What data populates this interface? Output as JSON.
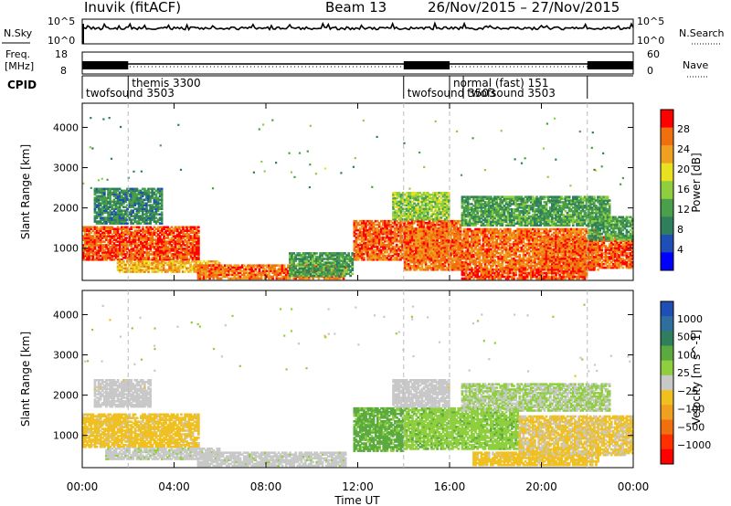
{
  "header": {
    "radar": "Inuvik (fitACF)",
    "beam": "Beam 13",
    "date_range": "26/Nov/2015 – 27/Nov/2015"
  },
  "nsky_panel": {
    "label": "N.Sky",
    "ytick_top": "10^5",
    "ytick_bottom": "10^0",
    "right_ytick_top": "10^5",
    "right_ytick_bottom": "10^0",
    "right_label": "N.Search"
  },
  "freq_panel": {
    "label_line1": "Freq.",
    "label_line2": "[MHz]",
    "ytick_top": "18",
    "ytick_bottom": "8",
    "right_ytick_top": "60",
    "right_ytick_bottom": "0",
    "right_label": "Nave"
  },
  "cpid_panel": {
    "label": "CPID",
    "segments": [
      {
        "start_hour": 0.0,
        "end_hour": 2.0,
        "row": 2,
        "text": "twofsound 3503"
      },
      {
        "start_hour": 2.0,
        "end_hour": 14.0,
        "row": 1,
        "text": "themis 3300"
      },
      {
        "start_hour": 14.0,
        "end_hour": 16.0,
        "row": 2,
        "text": "twofsound 3503"
      },
      {
        "start_hour": 16.0,
        "end_hour": 22.0,
        "row": 1,
        "text": "normal (fast) 151"
      },
      {
        "start_hour": 16.6,
        "end_hour": 22.0,
        "row": 2,
        "text": "twofsound 3503"
      }
    ]
  },
  "chart_data": [
    {
      "type": "heatmap",
      "parameter": "power",
      "ylabel": "Slant Range [km]",
      "ylim": [
        200,
        4600
      ],
      "yticks": [
        "1000",
        "2000",
        "3000",
        "4000"
      ],
      "colorbar": {
        "label": "Power [dB]",
        "range": [
          0,
          32
        ],
        "ticks": [
          "4",
          "8",
          "12",
          "16",
          "20",
          "24",
          "28"
        ],
        "colors": [
          "#0000ff",
          "#1f4fb4",
          "#2f7f5f",
          "#4a9f4a",
          "#8fcf3f",
          "#e8e020",
          "#f0a020",
          "#f07010",
          "#ff0000"
        ]
      },
      "regions": [
        {
          "t": [
            0.0,
            5.1
          ],
          "r": [
            700,
            1550
          ],
          "value": 28
        },
        {
          "t": [
            1.5,
            6.0
          ],
          "r": [
            400,
            700
          ],
          "value": 22
        },
        {
          "t": [
            5.0,
            11.5
          ],
          "r": [
            230,
            600
          ],
          "value": 26
        },
        {
          "t": [
            11.8,
            16.5
          ],
          "r": [
            700,
            1700
          ],
          "value": 27
        },
        {
          "t": [
            14.0,
            22.5
          ],
          "r": [
            450,
            1500
          ],
          "value": 26
        },
        {
          "t": [
            16.5,
            22.0
          ],
          "r": [
            230,
            500
          ],
          "value": 28
        },
        {
          "t": [
            20.0,
            24.0
          ],
          "r": [
            500,
            1300
          ],
          "value": 27
        },
        {
          "t": [
            0.5,
            3.5
          ],
          "r": [
            1600,
            2500
          ],
          "value": 10
        },
        {
          "t": [
            9.0,
            11.8
          ],
          "r": [
            300,
            900
          ],
          "value": 12
        },
        {
          "t": [
            13.5,
            16.0
          ],
          "r": [
            1700,
            2400
          ],
          "value": 16
        },
        {
          "t": [
            16.5,
            23.0
          ],
          "r": [
            1550,
            2300
          ],
          "value": 12
        },
        {
          "t": [
            22.0,
            24.0
          ],
          "r": [
            1200,
            1800
          ],
          "value": 12
        }
      ]
    },
    {
      "type": "heatmap",
      "parameter": "velocity",
      "ylabel": "Slant Range [km]",
      "ylim": [
        200,
        4600
      ],
      "yticks": [
        "1000",
        "2000",
        "3000",
        "4000"
      ],
      "colorbar": {
        "label": "Velocity [m s^-1]",
        "range": [
          -1200,
          1200
        ],
        "ticks": [
          "1000",
          "500",
          "100",
          "25",
          "−25",
          "−100",
          "−500",
          "−1000"
        ],
        "colors": [
          "#1f4fb4",
          "#2f6fa0",
          "#2f7f5f",
          "#5aaa40",
          "#8fcf3f",
          "#c8c8c8",
          "#f0c020",
          "#f0a020",
          "#f07010",
          "#ff3000",
          "#ff0000"
        ]
      },
      "regions": [
        {
          "t": [
            0.0,
            5.1
          ],
          "r": [
            700,
            1550
          ],
          "value": -200
        },
        {
          "t": [
            1.0,
            6.0
          ],
          "r": [
            400,
            700
          ],
          "value": 30
        },
        {
          "t": [
            5.0,
            11.5
          ],
          "r": [
            230,
            600
          ],
          "value": 10
        },
        {
          "t": [
            11.8,
            14.0
          ],
          "r": [
            600,
            1700
          ],
          "value": 400
        },
        {
          "t": [
            14.0,
            19.0
          ],
          "r": [
            650,
            1700
          ],
          "value": 250
        },
        {
          "t": [
            13.5,
            16.0
          ],
          "r": [
            1700,
            2400
          ],
          "value": 0
        },
        {
          "t": [
            17.0,
            22.5
          ],
          "r": [
            250,
            600
          ],
          "value": -200
        },
        {
          "t": [
            19.0,
            24.0
          ],
          "r": [
            500,
            1500
          ],
          "value": -150
        },
        {
          "t": [
            16.5,
            23.0
          ],
          "r": [
            1600,
            2300
          ],
          "value": 120
        },
        {
          "t": [
            0.5,
            3.0
          ],
          "r": [
            1700,
            2400
          ],
          "value": 0
        }
      ]
    }
  ],
  "x_axis": {
    "label": "Time UT",
    "ticks": [
      "00:00",
      "04:00",
      "08:00",
      "12:00",
      "16:00",
      "20:00",
      "00:00"
    ],
    "range_hours": [
      0,
      24
    ],
    "mode_change_hours": [
      2,
      14,
      16,
      22
    ]
  }
}
